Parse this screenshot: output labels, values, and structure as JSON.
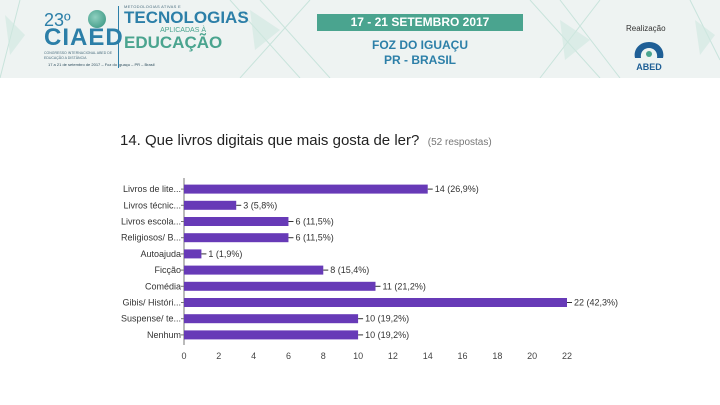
{
  "banner": {
    "edition": "23º",
    "logo_name": "CIAED",
    "logo_sub": "CONGRESSO INTERNACIONAL ABED DE EDUCAÇÃO A DISTÂNCIA",
    "logo_date": "17 a 21 de setembro de 2017 – Foz do Iguaçu – PR – Brasil",
    "theme_top": "METODOLOGIAS ATIVAS E",
    "theme_main": "TECNOLOGIAS",
    "theme_mid": "APLICADAS À",
    "theme_edu": "EDUCAÇÃO",
    "dates": "17 - 21 SETEMBRO 2017",
    "city_line1": "FOZ DO IGUAÇU",
    "city_line2": "PR - BRASIL",
    "realizacao": "Realização",
    "organizer": "ABED"
  },
  "question": {
    "title": "14. Que livros digitais que mais gosta de ler?",
    "responses": "(52 respostas)"
  },
  "colors": {
    "bar": "#673ab7",
    "accent": "#4aa48f",
    "brand": "#2c7fa8"
  },
  "chart_data": {
    "type": "bar",
    "orientation": "horizontal",
    "categories": [
      "Livros de lite...",
      "Livros técnic...",
      "Livros escola...",
      "Religiosos/ B...",
      "Autoajuda",
      "Ficção",
      "Comédia",
      "Gibis/ Históri...",
      "Suspense/ te...",
      "Nenhum"
    ],
    "values": [
      14,
      3,
      6,
      6,
      1,
      8,
      11,
      22,
      10,
      10
    ],
    "value_labels": [
      "14 (26,9%)",
      "3 (5,8%)",
      "6 (11,5%)",
      "6 (11,5%)",
      "1 (1,9%)",
      "8 (15,4%)",
      "11 (21,2%)",
      "22 (42,3%)",
      "10 (19,2%)",
      "10 (19,2%)"
    ],
    "xlim": [
      0,
      22
    ],
    "xticks": [
      0,
      2,
      4,
      6,
      8,
      10,
      12,
      14,
      16,
      18,
      20,
      22
    ],
    "title": "14. Que livros digitais que mais gosta de ler?",
    "xlabel": "",
    "ylabel": "",
    "grid": false,
    "legend": "none"
  }
}
